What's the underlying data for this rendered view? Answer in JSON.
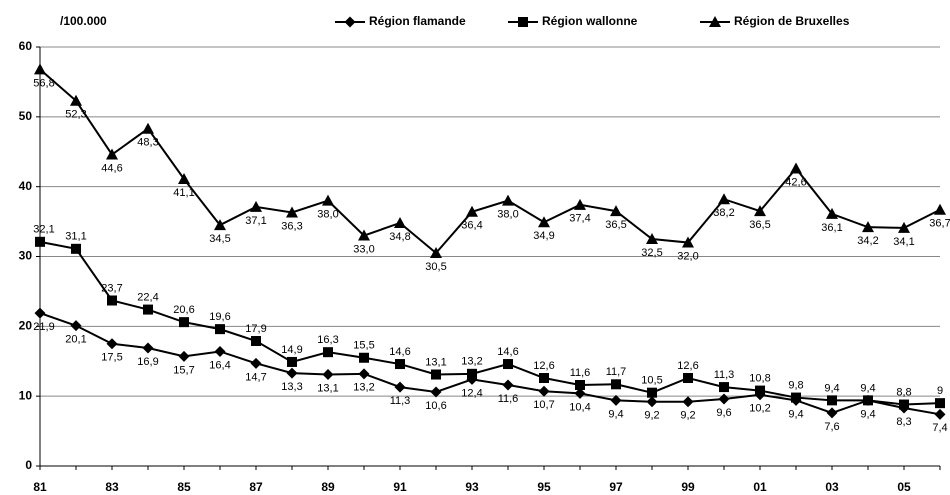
{
  "chart_data": {
    "type": "line",
    "ylabel": "/100.000",
    "categories": [
      "81",
      null,
      "83",
      null,
      "85",
      null,
      "87",
      null,
      "89",
      null,
      "91",
      null,
      "93",
      null,
      "95",
      null,
      "97",
      null,
      "99",
      null,
      "01",
      null,
      "03",
      null,
      "05",
      null
    ],
    "series": [
      {
        "name": "Région flamande",
        "color": "#000000",
        "marker": "diamond",
        "values": [
          21.9,
          20.1,
          17.5,
          16.9,
          15.7,
          16.4,
          14.7,
          13.3,
          13.1,
          13.2,
          11.3,
          10.6,
          12.4,
          11.6,
          10.7,
          10.4,
          9.4,
          9.2,
          9.2,
          9.6,
          10.2,
          9.4,
          7.6,
          9.4,
          8.3,
          7.4
        ],
        "value_labels": [
          "21,9",
          "20,1",
          "17,5",
          "16,9",
          "15,7",
          "16,4",
          "14,7",
          "13,3",
          "13,1",
          "13,2",
          "11,3",
          "10,6",
          "12,4",
          "11,6",
          "10,7",
          "10,4",
          "9,4",
          "9,2",
          "9,2",
          "9,6",
          "10,2",
          "9,4",
          "7,6",
          "9,4",
          "8,3",
          "7,4"
        ]
      },
      {
        "name": "Région wallonne",
        "color": "#000000",
        "marker": "square",
        "values": [
          32.1,
          31.1,
          23.7,
          22.4,
          20.6,
          19.6,
          17.9,
          14.9,
          16.3,
          15.5,
          14.6,
          13.1,
          13.2,
          14.6,
          12.6,
          11.6,
          11.7,
          10.5,
          12.6,
          11.3,
          10.8,
          9.8,
          9.4,
          9.4,
          8.8,
          9
        ],
        "value_labels": [
          "32,1",
          "31,1",
          "23,7",
          "22,4",
          "20,6",
          "19,6",
          "17,9",
          "14,9",
          "16,3",
          "15,5",
          "14,6",
          "13,1",
          "13,2",
          "14,6",
          "12,6",
          "11,6",
          "11,7",
          "10,5",
          "12,6",
          "11,3",
          "10,8",
          "9,8",
          "9,4",
          "9,4",
          "8,8",
          "9"
        ]
      },
      {
        "name": "Région de Bruxelles",
        "color": "#000000",
        "marker": "triangle",
        "values": [
          56.8,
          52.3,
          44.6,
          48.3,
          41.1,
          34.5,
          37.1,
          36.3,
          38.0,
          33.0,
          34.8,
          30.5,
          36.4,
          38.0,
          34.9,
          37.4,
          36.5,
          32.5,
          32.0,
          38.2,
          36.5,
          42.6,
          36.1,
          34.2,
          34.1,
          36.7
        ],
        "value_labels": [
          "56,8",
          "52,3",
          "44,6",
          "48,3",
          "41,1",
          "34,5",
          "37,1",
          "36,3",
          "38,0",
          "33,0",
          "34,8",
          "30,5",
          "36,4",
          "38,0",
          "34,9",
          "37,4",
          "36,5",
          "32,5",
          "32,0",
          "38,2",
          "36,5",
          "42,6",
          "36,1",
          "34,2",
          "34,1",
          "36,7"
        ]
      }
    ],
    "ylim": [
      0,
      60
    ],
    "yticks": [
      0,
      10,
      20,
      30,
      40,
      50,
      60
    ],
    "grid": true,
    "legend": "top"
  }
}
